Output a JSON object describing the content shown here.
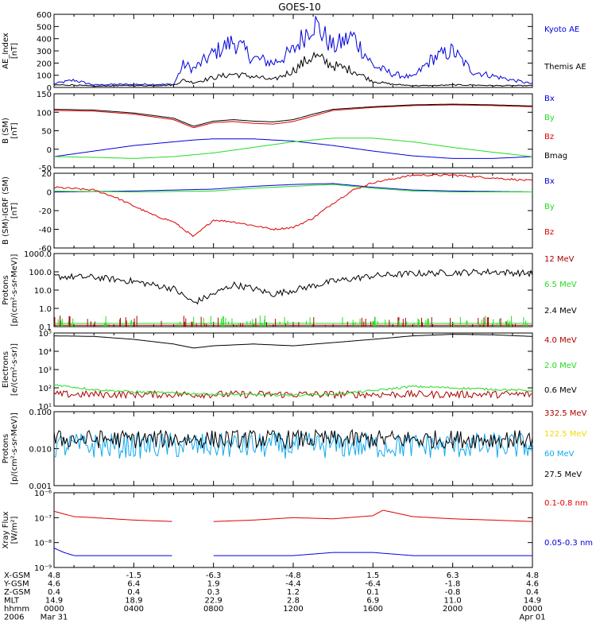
{
  "title": "GOES-10",
  "colors": {
    "black": "#000000",
    "blue": "#0000dd",
    "red": "#dd0000",
    "green": "#22dd22",
    "darkred": "#aa0000",
    "yellow": "#eedd00",
    "cyan": "#11aaee"
  },
  "chart_data": [
    {
      "type": "line",
      "panel": "ae-index",
      "ylabel": "AE Index [nT]",
      "ylabel_lines": [
        "AE_Index",
        "[nT]"
      ],
      "ylim": [
        0,
        600
      ],
      "yticks": [
        "0",
        "100",
        "200",
        "300",
        "400",
        "500",
        "600"
      ],
      "log": false,
      "series": [
        {
          "name": "Kyoto AE",
          "color": "#0000dd",
          "x": [
            0,
            1,
            2,
            3,
            4,
            5,
            6,
            6.5,
            7,
            8,
            9,
            10,
            11,
            12,
            13,
            14,
            15,
            16,
            17,
            18,
            19,
            20,
            21,
            22,
            23,
            24
          ],
          "y": [
            30,
            60,
            20,
            25,
            25,
            25,
            25,
            190,
            150,
            280,
            380,
            240,
            200,
            300,
            540,
            330,
            420,
            180,
            110,
            80,
            240,
            300,
            130,
            95,
            60,
            30
          ]
        },
        {
          "name": "Themis AE",
          "color": "#000000",
          "x": [
            0,
            1,
            2,
            3,
            4,
            5,
            6,
            6.5,
            7,
            8,
            9,
            10,
            11,
            12,
            13,
            14,
            15,
            16,
            17,
            18,
            19,
            20,
            21,
            22,
            23,
            24
          ],
          "y": [
            20,
            20,
            10,
            15,
            15,
            15,
            20,
            60,
            40,
            80,
            110,
            90,
            60,
            140,
            260,
            180,
            140,
            50,
            25,
            15,
            15,
            20,
            20,
            15,
            15,
            15
          ]
        }
      ]
    },
    {
      "type": "line",
      "panel": "b-sm",
      "ylabel": "B (SM) [nT]",
      "ylabel_lines": [
        "B (SM)",
        "[nT]"
      ],
      "ylim": [
        -50,
        150
      ],
      "yticks": [
        "-50",
        "0",
        "50",
        "100",
        "150"
      ],
      "log": false,
      "series": [
        {
          "name": "Bx",
          "color": "#0000dd",
          "x": [
            0,
            2,
            4,
            6,
            7,
            8,
            10,
            12,
            14,
            16,
            18,
            20,
            22,
            24
          ],
          "y": [
            -20,
            -5,
            10,
            20,
            25,
            28,
            28,
            22,
            10,
            -5,
            -18,
            -25,
            -25,
            -20
          ]
        },
        {
          "name": "By",
          "color": "#22dd22",
          "x": [
            0,
            2,
            4,
            6,
            8,
            10,
            12,
            14,
            16,
            18,
            20,
            22,
            24
          ],
          "y": [
            -20,
            -22,
            -25,
            -20,
            -10,
            5,
            20,
            30,
            30,
            20,
            5,
            -8,
            -20
          ]
        },
        {
          "name": "Bz",
          "color": "#dd0000",
          "x": [
            0,
            2,
            4,
            6,
            7,
            8,
            9,
            10,
            11,
            12,
            13,
            14,
            16,
            18,
            20,
            22,
            24
          ],
          "y": [
            105,
            103,
            95,
            80,
            58,
            72,
            75,
            70,
            68,
            75,
            90,
            105,
            113,
            118,
            120,
            118,
            115
          ]
        },
        {
          "name": "Bmag",
          "color": "#000000",
          "x": [
            0,
            2,
            4,
            6,
            7,
            8,
            9,
            10,
            11,
            12,
            13,
            14,
            16,
            18,
            20,
            22,
            24
          ],
          "y": [
            108,
            106,
            98,
            84,
            62,
            76,
            80,
            76,
            74,
            80,
            95,
            108,
            115,
            120,
            122,
            120,
            117
          ]
        }
      ]
    },
    {
      "type": "line",
      "panel": "b-sm-igrf",
      "ylabel": "B (SM)-IGRF (SM) [nT]",
      "ylabel_lines": [
        "B (SM)-IGRF (SM)",
        "[nT]"
      ],
      "ylim": [
        -60,
        20
      ],
      "yticks": [
        "-60",
        "-40",
        "-20",
        "0",
        "20"
      ],
      "log": false,
      "series": [
        {
          "name": "Bx",
          "color": "#0000dd",
          "x": [
            0,
            4,
            8,
            10,
            12,
            14,
            16,
            18,
            20,
            24
          ],
          "y": [
            0,
            1,
            3,
            6,
            8,
            9,
            5,
            2,
            1,
            0
          ]
        },
        {
          "name": "By",
          "color": "#22dd22",
          "x": [
            0,
            4,
            8,
            10,
            12,
            14,
            16,
            18,
            20,
            24
          ],
          "y": [
            1,
            0,
            1,
            4,
            6,
            8,
            4,
            1,
            0,
            0
          ]
        },
        {
          "name": "Bz",
          "color": "#dd0000",
          "x": [
            0,
            2,
            3,
            4,
            5,
            6,
            7,
            8,
            9,
            10,
            11,
            12,
            13,
            14,
            15,
            16,
            18,
            20,
            22,
            24
          ],
          "y": [
            5,
            2,
            -5,
            -15,
            -25,
            -32,
            -48,
            -30,
            -32,
            -36,
            -40,
            -38,
            -28,
            -12,
            2,
            10,
            18,
            18,
            15,
            12
          ]
        }
      ]
    },
    {
      "type": "line",
      "panel": "protons-1",
      "ylabel": "Protons [p/(cm2-s-sr-MeV)]",
      "ylabel_lines": [
        "Protons",
        "[p/(cm²-s-sr-MeV)]"
      ],
      "ylim": [
        0.1,
        1000
      ],
      "yticks": [
        "0.1",
        "1.0",
        "10.0",
        "100.0",
        "1000.0"
      ],
      "log": true,
      "series": [
        {
          "name": "12 MeV",
          "color": "#aa0000",
          "x": [
            0,
            24
          ],
          "y": [
            0.12,
            0.12
          ]
        },
        {
          "name": "6.5 MeV",
          "color": "#22dd22",
          "x": [
            0,
            24
          ],
          "y": [
            0.15,
            0.15
          ]
        },
        {
          "name": "2.4 MeV",
          "color": "#000000",
          "x": [
            0,
            2,
            4,
            6,
            7,
            8,
            9,
            10,
            11,
            12,
            14,
            16,
            18,
            20,
            22,
            24
          ],
          "y": [
            55,
            50,
            30,
            12,
            2,
            6,
            20,
            12,
            6,
            10,
            30,
            60,
            80,
            90,
            100,
            80
          ]
        }
      ]
    },
    {
      "type": "line",
      "panel": "electrons",
      "ylabel": "Electrons [e/(cm2-s-sr)]",
      "ylabel_lines": [
        "Electrons",
        "[e/(cm²-s-sr)]"
      ],
      "ylim": [
        10,
        100000
      ],
      "yticks": [
        "10¹",
        "10²",
        "10³",
        "10⁴",
        "10⁵"
      ],
      "log": true,
      "series": [
        {
          "name": "4.0 MeV",
          "color": "#aa0000",
          "x": [
            0,
            24
          ],
          "y": [
            40,
            40
          ]
        },
        {
          "name": "2.0 MeV",
          "color": "#22dd22",
          "x": [
            0,
            2,
            4,
            8,
            12,
            14,
            16,
            18,
            20,
            24
          ],
          "y": [
            150,
            80,
            60,
            45,
            40,
            45,
            70,
            120,
            100,
            70
          ]
        },
        {
          "name": "0.6 MeV",
          "color": "#000000",
          "x": [
            0,
            2,
            4,
            6,
            7,
            8,
            10,
            12,
            14,
            16,
            18,
            20,
            22,
            24
          ],
          "y": [
            70000,
            65000,
            45000,
            25000,
            15000,
            20000,
            25000,
            20000,
            30000,
            45000,
            70000,
            85000,
            80000,
            65000
          ]
        }
      ]
    },
    {
      "type": "line",
      "panel": "protons-2",
      "ylabel": "Protons [p/(cm2-s-sr-MeV)]",
      "ylabel_lines": [
        "Protons",
        "[p/(cm²-s-sr-MeV)]"
      ],
      "ylim": [
        0.001,
        0.1
      ],
      "yticks": [
        "0.001",
        "0.010",
        "0.100"
      ],
      "log": true,
      "series": [
        {
          "name": "332.5 MeV",
          "color": "#aa0000",
          "x": [],
          "y": []
        },
        {
          "name": "122.5 MeV",
          "color": "#eedd00",
          "x": [],
          "y": []
        },
        {
          "name": "60 MeV",
          "color": "#11aaee",
          "x": [
            0,
            24
          ],
          "y": [
            0.012,
            0.012
          ]
        },
        {
          "name": "27.5 MeV",
          "color": "#000000",
          "x": [
            0,
            24
          ],
          "y": [
            0.018,
            0.018
          ]
        }
      ]
    },
    {
      "type": "line",
      "panel": "xray",
      "ylabel": "Xray Flux [W/m2]",
      "ylabel_lines": [
        "Xray Flux",
        "[W/m²]"
      ],
      "ylim": [
        1e-09,
        1e-06
      ],
      "yticks": [
        "10⁻⁹",
        "10⁻⁸",
        "10⁻⁷",
        "10⁻⁶"
      ],
      "log": true,
      "series": [
        {
          "name": "0.1-0.8 nm",
          "color": "#dd0000",
          "x": [
            0,
            1,
            2,
            4,
            6,
            6.3,
            7.5,
            8,
            10,
            12,
            14,
            16,
            16.5,
            18,
            20,
            22,
            24
          ],
          "y": [
            1.8e-07,
            1.1e-07,
            1e-07,
            8e-08,
            7e-08,
            null,
            null,
            7e-08,
            8e-08,
            1e-07,
            9e-08,
            1.2e-07,
            2e-07,
            1.1e-07,
            9e-08,
            8e-08,
            7e-08
          ]
        },
        {
          "name": "0.05-0.3 nm",
          "color": "#0000dd",
          "x": [
            0,
            0.5,
            1,
            2,
            4,
            6,
            6.3,
            7.5,
            8,
            10,
            12,
            14,
            16,
            18,
            20,
            22,
            24
          ],
          "y": [
            6e-09,
            4e-09,
            3e-09,
            3e-09,
            3e-09,
            3e-09,
            null,
            null,
            3e-09,
            3e-09,
            3e-09,
            4e-09,
            4e-09,
            3e-09,
            3e-09,
            3e-09,
            3e-09
          ]
        }
      ]
    }
  ],
  "xaxis": {
    "rows": [
      {
        "label": "X-GSM",
        "values": [
          "4.8",
          "-1.5",
          "-6.3",
          "-4.8",
          "1.5",
          "6.3",
          "4.8"
        ]
      },
      {
        "label": "Y-GSM",
        "values": [
          "4.6",
          "6.4",
          "1.9",
          "-4.4",
          "-6.4",
          "-1.8",
          "4.6"
        ]
      },
      {
        "label": "Z-GSM",
        "values": [
          "0.4",
          "0.4",
          "0.3",
          "1.2",
          "0.1",
          "-0.8",
          "0.4"
        ]
      },
      {
        "label": "MLT",
        "values": [
          "14.9",
          "18.9",
          "22.9",
          "2.8",
          "6.9",
          "11.0",
          "14.9"
        ]
      },
      {
        "label": "hhmm",
        "values": [
          "0000",
          "0400",
          "0800",
          "1200",
          "1600",
          "2000",
          "0000"
        ]
      },
      {
        "label": "2006",
        "values": [
          "Mar 31",
          "",
          "",
          "",
          "",
          "",
          "Apr 01"
        ]
      }
    ]
  }
}
